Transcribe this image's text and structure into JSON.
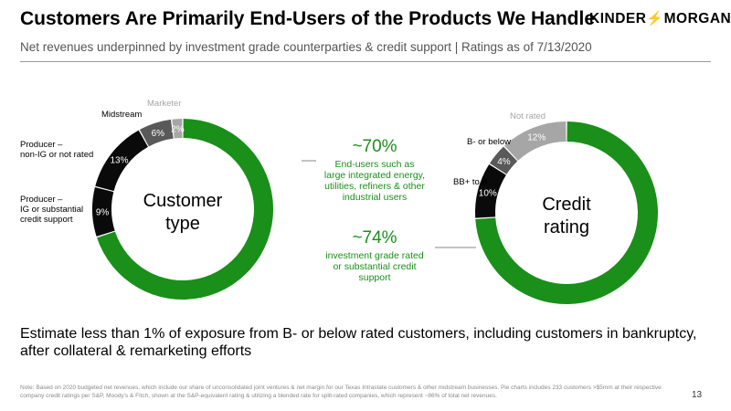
{
  "title": "Customers Are Primarily End-Users of the Products We Handle",
  "subtitle": "Net revenues underpinned by investment grade counterparties & credit support | Ratings as of 7/13/2020",
  "logo": {
    "left": "KINDER",
    "right": "MORGAN",
    "bolt": "⚡"
  },
  "callouts": [
    {
      "headline": "~70%",
      "lines": [
        "End-users such as",
        "large integrated energy,",
        "utilities, refiners & other",
        "industrial users"
      ]
    },
    {
      "headline": "~74%",
      "lines": [
        "investment grade rated",
        "or substantial credit",
        "support"
      ]
    }
  ],
  "colors": {
    "green": "#1a8f1a",
    "black": "#0a0a0a",
    "dark_gray": "#595959",
    "light_gray": "#a6a6a6",
    "title_gray": "#555555"
  },
  "chart_data": [
    {
      "type": "pie",
      "center_label": [
        "Customer",
        "type"
      ],
      "slices": [
        {
          "name": "End-users",
          "value": 70,
          "label": "",
          "color": "#1a8f1a"
        },
        {
          "name": "Producer – IG or substantial credit support",
          "value": 9,
          "label": "9%",
          "color": "#0a0a0a"
        },
        {
          "name": "Producer – non-IG or not rated",
          "value": 13,
          "label": "13%",
          "color": "#0a0a0a"
        },
        {
          "name": "Midstream",
          "value": 6,
          "label": "6%",
          "color": "#595959"
        },
        {
          "name": "Marketer",
          "value": 2,
          "label": "2%",
          "color": "#a6a6a6"
        }
      ],
      "legend_labels": [
        {
          "lines": [
            "Producer –",
            "IG or substantial",
            "credit support"
          ],
          "color": "#000000"
        },
        {
          "lines": [
            "Producer –",
            "non-IG or not rated"
          ],
          "color": "#000000"
        },
        {
          "lines": [
            "Midstream"
          ],
          "color": "#000000"
        },
        {
          "lines": [
            "Marketer"
          ],
          "color": "#a6a6a6"
        }
      ]
    },
    {
      "type": "pie",
      "center_label": [
        "Credit",
        "rating"
      ],
      "slices": [
        {
          "name": "Investment grade / credit support",
          "value": 74,
          "label": "",
          "color": "#1a8f1a"
        },
        {
          "name": "BB+ to B",
          "value": 10,
          "label": "10%",
          "color": "#0a0a0a"
        },
        {
          "name": "B- or below",
          "value": 4,
          "label": "4%",
          "color": "#595959"
        },
        {
          "name": "Not rated",
          "value": 12,
          "label": "12%",
          "color": "#a6a6a6"
        }
      ],
      "legend_labels": [
        {
          "lines": [
            "BB+ to B"
          ],
          "color": "#000000"
        },
        {
          "lines": [
            "B- or below"
          ],
          "color": "#000000"
        },
        {
          "lines": [
            "Not rated"
          ],
          "color": "#a6a6a6"
        }
      ]
    }
  ],
  "bottom_text": "Estimate less than 1% of exposure from B- or below rated customers, including customers in bankruptcy, after collateral & remarketing efforts",
  "note": "Note: Based on 2020 budgeted net revenues, which include our share of unconsolidated joint ventures & net margin for our Texas Intrastate customers & other midstream businesses. Pie charts includes 233 customers >$5mm at their respective company credit ratings per S&P, Moody's & Fitch, shown at the S&P-equivalent rating & utilizing a blended rate for split-rated companies, which represent ~86% of total net revenues.",
  "page_number": "13"
}
